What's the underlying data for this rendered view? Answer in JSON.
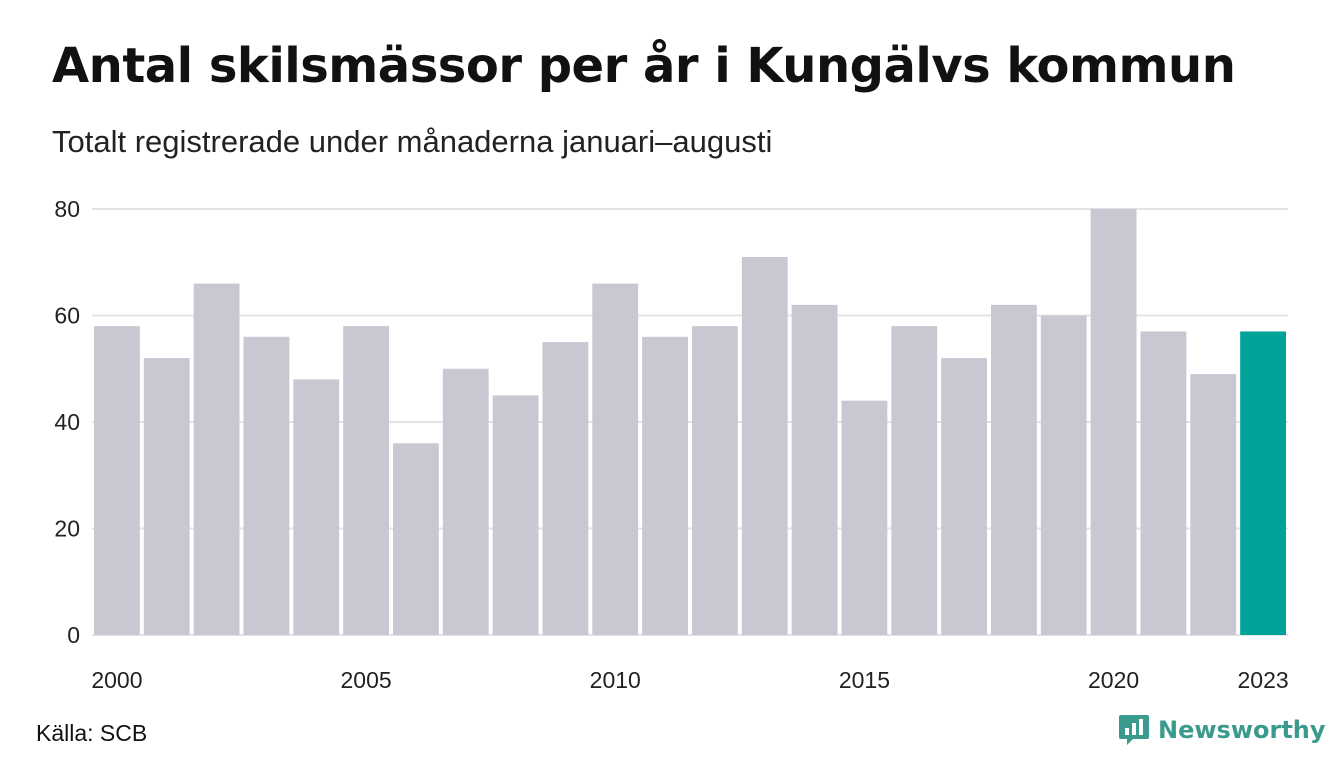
{
  "header": {
    "title": "Antal skilsmässor per år i Kungälvs kommun",
    "subtitle": "Totalt registrerade under månaderna januari–augusti"
  },
  "footer": {
    "source": "Källa: SCB",
    "brand": "Newsworthy"
  },
  "colors": {
    "bar": "#c9c7d2",
    "highlight": "#00a39a",
    "grid": "#e3e3e3",
    "brand": "#3b9a8e"
  },
  "chart_data": {
    "type": "bar",
    "categories": [
      "2000",
      "2001",
      "2002",
      "2003",
      "2004",
      "2005",
      "2006",
      "2007",
      "2008",
      "2009",
      "2010",
      "2011",
      "2012",
      "2013",
      "2014",
      "2015",
      "2016",
      "2017",
      "2018",
      "2019",
      "2020",
      "2021",
      "2022",
      "2023"
    ],
    "values": [
      58,
      52,
      66,
      56,
      48,
      58,
      36,
      50,
      45,
      55,
      66,
      56,
      58,
      71,
      62,
      44,
      58,
      52,
      62,
      60,
      80,
      57,
      49,
      57
    ],
    "highlight": [
      "2023"
    ],
    "x_tick_labels": [
      "2000",
      "2005",
      "2010",
      "2015",
      "2020",
      "2023"
    ],
    "y_ticks": [
      0,
      20,
      40,
      60,
      80
    ],
    "ylim": [
      0,
      80
    ],
    "grid": true,
    "legend": "none",
    "title": "Antal skilsmässor per år i Kungälvs kommun",
    "subtitle": "Totalt registrerade under månaderna januari–augusti",
    "xlabel": "",
    "ylabel": ""
  }
}
